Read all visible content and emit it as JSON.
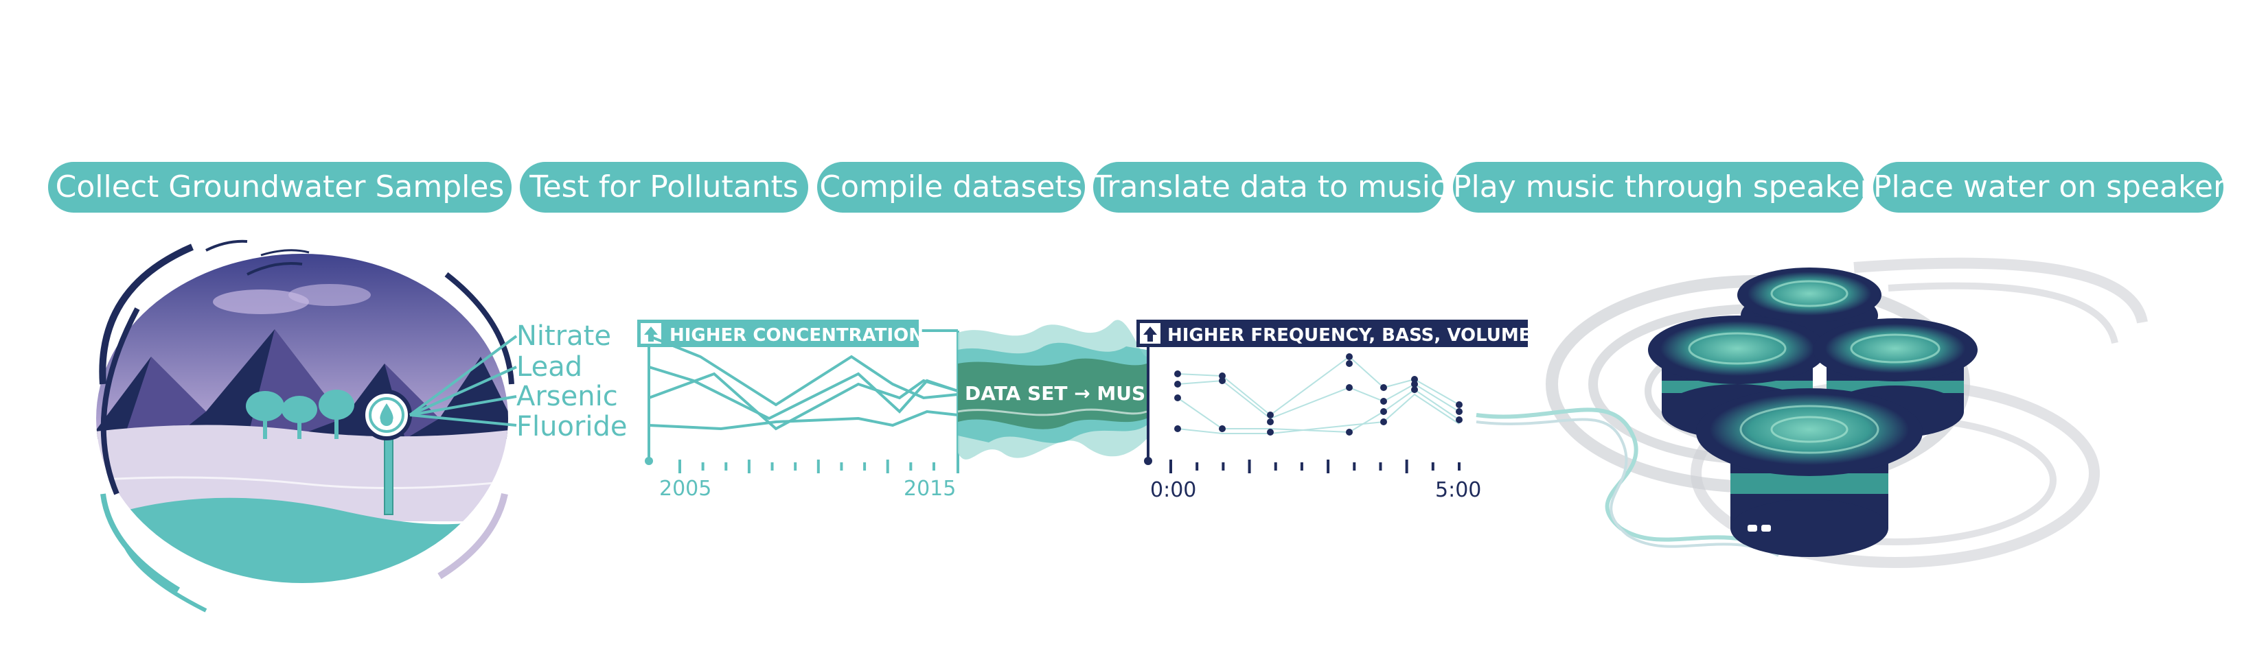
{
  "colors": {
    "teal": "#5ec0bd",
    "navy": "#1f2b5b",
    "purple": "#6b5ea8",
    "lavender": "#c9bfdc",
    "green": "#3d8a6a",
    "gray": "#cfd1d6"
  },
  "steps": [
    {
      "label": "Collect Groundwater Samples"
    },
    {
      "label": "Test for Pollutants"
    },
    {
      "label": "Compile datasets"
    },
    {
      "label": "Translate data to music"
    },
    {
      "label": "Play music through speaker"
    },
    {
      "label": "Place water on speaker"
    }
  ],
  "pollutants": [
    "Nitrate",
    "Lead",
    "Arsenic",
    "Fluoride"
  ],
  "concentration_chart": {
    "badge": "HIGHER CONCENTRATION",
    "x_start": "2005",
    "x_end": "2015",
    "tick_count": 12
  },
  "conversion_label": "DATA SET → MUSIC",
  "music_chart": {
    "badge": "HIGHER FREQUENCY, BASS, VOLUME",
    "t_start": "0:00",
    "t_end": "5:00",
    "tick_count": 12
  },
  "icons": {
    "water_drop": "water-drop-icon",
    "arrow_up": "arrow-up-icon"
  }
}
